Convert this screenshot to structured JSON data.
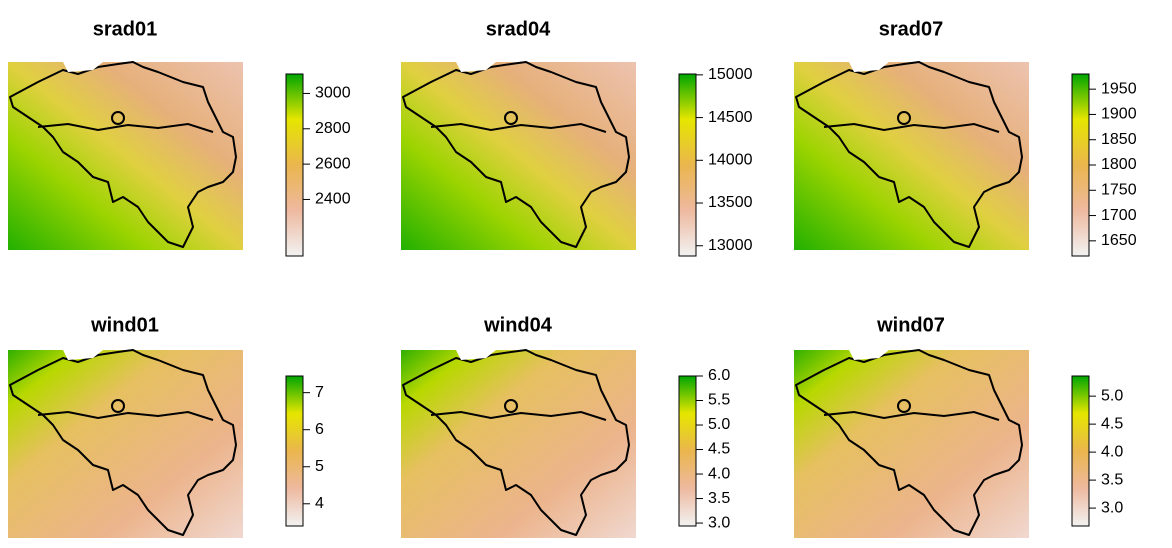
{
  "chart_data": [
    {
      "type": "raster",
      "title": "srad01",
      "zlim": [
        2080,
        3110
      ],
      "zticks": [
        2400,
        2600,
        2800,
        3000
      ],
      "colors": [
        "#F2F2F2",
        "#EEB99F",
        "#EAB64E",
        "#E6E600",
        "#00A600"
      ]
    },
    {
      "type": "raster",
      "title": "srad04",
      "zlim": [
        12880,
        15010
      ],
      "zticks": [
        13000,
        13500,
        14000,
        14500,
        15000
      ],
      "colors": [
        "#F2F2F2",
        "#EEB99F",
        "#EAB64E",
        "#E6E600",
        "#00A600"
      ]
    },
    {
      "type": "raster",
      "title": "srad07",
      "zlim": [
        1620,
        1980
      ],
      "zticks": [
        1650,
        1700,
        1750,
        1800,
        1850,
        1900,
        1950
      ],
      "colors": [
        "#F2F2F2",
        "#EEB99F",
        "#EAB64E",
        "#E6E600",
        "#00A600"
      ]
    },
    {
      "type": "raster",
      "title": "wind01",
      "zlim": [
        3.4,
        7.45
      ],
      "zticks": [
        4,
        5,
        6,
        7
      ],
      "colors": [
        "#F2F2F2",
        "#EEB99F",
        "#EAB64E",
        "#E6E600",
        "#00A600"
      ]
    },
    {
      "type": "raster",
      "title": "wind04",
      "zlim": [
        2.94,
        6.0
      ],
      "zticks": [
        {
          "value": 3,
          "label": "3.0"
        },
        3.5,
        {
          "value": 4,
          "label": "4.0"
        },
        4.5,
        {
          "value": 5,
          "label": "5.0"
        },
        5.5,
        {
          "value": 6,
          "label": "6.0"
        }
      ],
      "colors": [
        "#F2F2F2",
        "#EEB99F",
        "#EAB64E",
        "#E6E600",
        "#00A600"
      ]
    },
    {
      "type": "raster",
      "title": "wind07",
      "zlim": [
        2.68,
        5.36
      ],
      "zticks": [
        {
          "value": 3,
          "label": "3.0"
        },
        3.5,
        {
          "value": 4,
          "label": "4.0"
        },
        4.5,
        {
          "value": 5,
          "label": "5.0"
        }
      ],
      "colors": [
        "#F2F2F2",
        "#EEB99F",
        "#EAB64E",
        "#E6E600",
        "#00A600"
      ]
    }
  ]
}
